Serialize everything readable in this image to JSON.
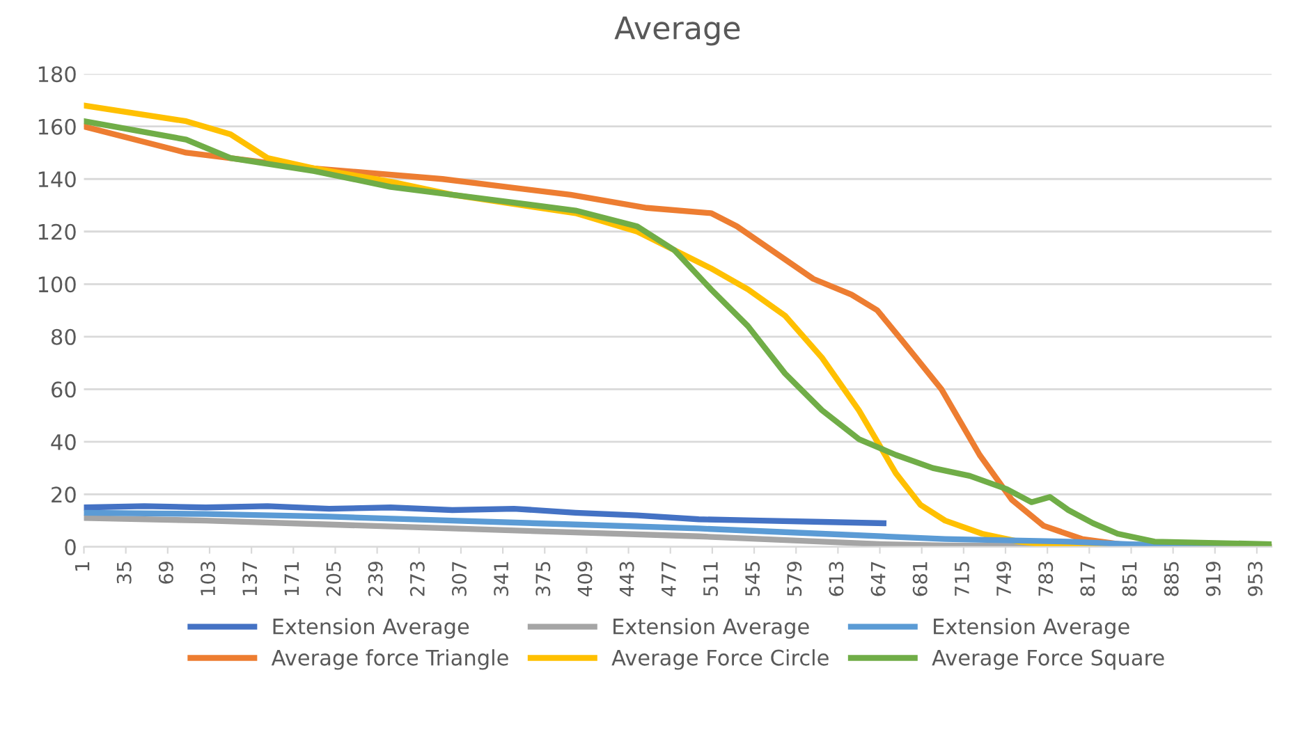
{
  "chart_data": {
    "type": "line",
    "title": "Average",
    "xlim": [
      1,
      965
    ],
    "xticks": [
      1,
      35,
      69,
      103,
      137,
      171,
      205,
      239,
      273,
      307,
      341,
      375,
      409,
      443,
      477,
      511,
      545,
      579,
      613,
      647,
      681,
      715,
      749,
      783,
      817,
      851,
      885,
      919,
      953
    ],
    "ylim": [
      0,
      180
    ],
    "yticks": [
      0,
      20,
      40,
      60,
      80,
      100,
      120,
      140,
      160,
      180
    ],
    "grid": "y",
    "legend": "bottom",
    "line_style": "solid",
    "marker": "none",
    "series": [
      {
        "name": "Extension Average",
        "color": "#4472c4",
        "x": [
          1,
          50,
          100,
          150,
          200,
          250,
          300,
          350,
          400,
          450,
          500,
          550,
          600,
          650
        ],
        "values": [
          15,
          15.5,
          15,
          15.5,
          14.5,
          15,
          14,
          14.5,
          13,
          12,
          10.5,
          10,
          9.5,
          9
        ]
      },
      {
        "name": "Average force Triangle",
        "color": "#ed7d31",
        "x": [
          1,
          84,
          188,
          292,
          396,
          458,
          510,
          531,
          562,
          593,
          624,
          645,
          666,
          697,
          728,
          754,
          780,
          811,
          842,
          870,
          965
        ],
        "values": [
          160,
          150,
          144,
          140,
          134,
          129,
          127,
          122,
          112,
          102,
          96,
          90,
          78,
          60,
          35,
          18,
          8,
          3,
          1,
          0.5,
          0
        ]
      },
      {
        "name": "Extension Average",
        "color": "#a5a5a5",
        "x": [
          1,
          100,
          200,
          300,
          400,
          500,
          600,
          650,
          700,
          965
        ],
        "values": [
          11,
          10,
          8.5,
          7,
          5.5,
          4,
          2,
          1,
          0.5,
          0
        ]
      },
      {
        "name": "Average Force Circle",
        "color": "#ffc000",
        "x": [
          1,
          84,
          120,
          150,
          188,
          250,
          300,
          400,
          450,
          480,
          510,
          540,
          570,
          600,
          630,
          660,
          680,
          700,
          730,
          760,
          790,
          965
        ],
        "values": [
          168,
          162,
          157,
          148,
          144,
          139,
          134,
          127,
          120,
          113,
          106,
          98,
          88,
          72,
          52,
          28,
          16,
          10,
          5,
          2,
          0.5,
          0
        ]
      },
      {
        "name": "Extension Average",
        "color": "#5b9bd5",
        "x": [
          1,
          100,
          200,
          300,
          400,
          500,
          600,
          700,
          800,
          850,
          900,
          965
        ],
        "values": [
          13,
          12.5,
          11.5,
          10,
          8.5,
          7,
          5,
          3,
          2,
          1,
          0.5,
          0
        ]
      },
      {
        "name": "Average Force Square",
        "color": "#70ad47",
        "x": [
          1,
          84,
          120,
          188,
          250,
          300,
          400,
          450,
          480,
          510,
          540,
          570,
          600,
          630,
          660,
          690,
          720,
          750,
          770,
          785,
          800,
          820,
          840,
          870,
          965
        ],
        "values": [
          162,
          155,
          148,
          143,
          137,
          134,
          128,
          122,
          113,
          98,
          84,
          66,
          52,
          41,
          35,
          30,
          27,
          22,
          17,
          19,
          14,
          9,
          5,
          2,
          1
        ]
      }
    ]
  }
}
